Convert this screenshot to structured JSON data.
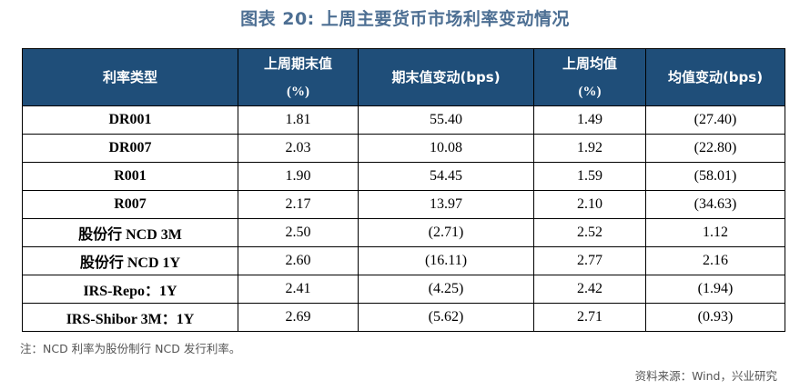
{
  "title": "图表 20:    上周主要货币市场利率变动情况",
  "table": {
    "headers": [
      {
        "line1": "利率类型",
        "line2": ""
      },
      {
        "line1": "上周期末值",
        "line2": "(%)"
      },
      {
        "line1": "期末值变动(bps)",
        "line2": ""
      },
      {
        "line1": "上周均值",
        "line2": "(%)"
      },
      {
        "line1": "均值变动(bps)",
        "line2": ""
      }
    ],
    "rows": [
      {
        "name": "DR001",
        "end_value": "1.81",
        "end_change": "55.40",
        "avg_value": "1.49",
        "avg_change": "(27.40)"
      },
      {
        "name": "DR007",
        "end_value": "2.03",
        "end_change": "10.08",
        "avg_value": "1.92",
        "avg_change": "(22.80)"
      },
      {
        "name": "R001",
        "end_value": "1.90",
        "end_change": "54.45",
        "avg_value": "1.59",
        "avg_change": "(58.01)"
      },
      {
        "name": "R007",
        "end_value": "2.17",
        "end_change": "13.97",
        "avg_value": "2.10",
        "avg_change": "(34.63)"
      },
      {
        "name": "股份行 NCD 3M",
        "end_value": "2.50",
        "end_change": "(2.71)",
        "avg_value": "2.52",
        "avg_change": "1.12"
      },
      {
        "name": "股份行 NCD 1Y",
        "end_value": "2.60",
        "end_change": "(16.11)",
        "avg_value": "2.77",
        "avg_change": "2.16"
      },
      {
        "name": "IRS-Repo：1Y",
        "end_value": "2.41",
        "end_change": "(4.25)",
        "avg_value": "2.42",
        "avg_change": "(1.94)"
      },
      {
        "name": "IRS-Shibor 3M：1Y",
        "end_value": "2.69",
        "end_change": "(5.62)",
        "avg_value": "2.71",
        "avg_change": "(0.93)"
      }
    ]
  },
  "note": "注：NCD 利率为股份制行 NCD 发行利率。",
  "source": "资料来源：Wind，兴业研究",
  "colors": {
    "header_bg": "#1f4e79",
    "title": "#4d6f93",
    "negative": "#e00000"
  }
}
